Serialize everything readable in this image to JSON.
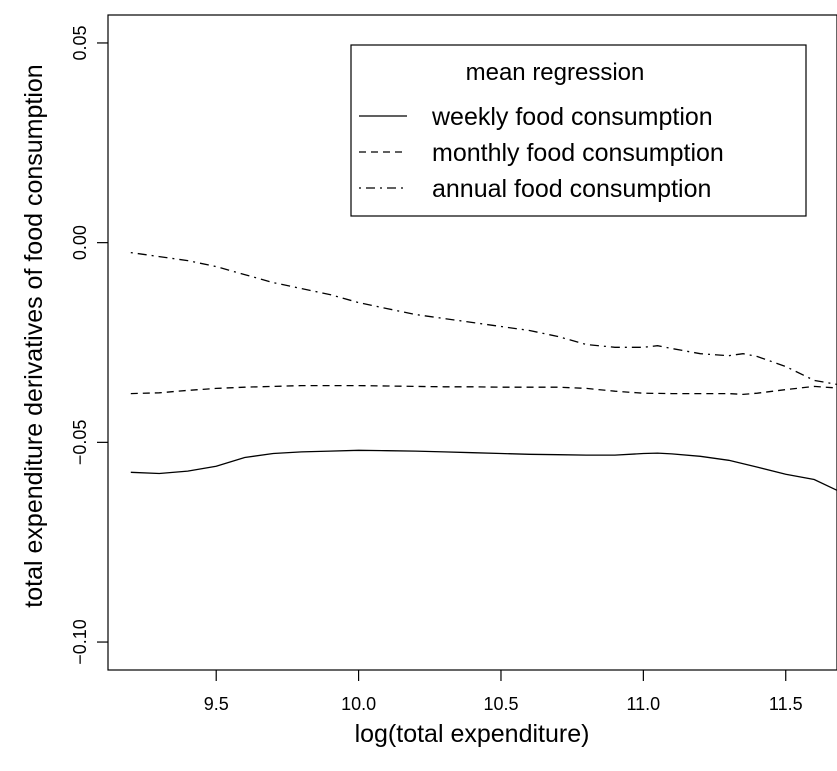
{
  "chart_data": {
    "type": "line",
    "xlabel": "log(total expenditure)",
    "ylabel": "total expenditure derivatives of food consumption",
    "xlim": [
      9.12,
      11.68
    ],
    "ylim": [
      -0.107,
      0.057
    ],
    "x_ticks": [
      {
        "value": 9.5,
        "label": "9.5"
      },
      {
        "value": 10.0,
        "label": "10.0"
      },
      {
        "value": 10.5,
        "label": "10.5"
      },
      {
        "value": 11.0,
        "label": "11.0"
      },
      {
        "value": 11.5,
        "label": "11.5"
      }
    ],
    "y_ticks": [
      {
        "value": -0.1,
        "label": "−0.10"
      },
      {
        "value": -0.05,
        "label": "−0.05"
      },
      {
        "value": 0.0,
        "label": "0.00"
      },
      {
        "value": 0.05,
        "label": "0.05"
      }
    ],
    "grid": false,
    "legend": {
      "title": "mean regression",
      "placement": "top-right",
      "entries": [
        "weekly food consumption",
        "monthly food consumption",
        "annual food consumption"
      ]
    },
    "series": [
      {
        "name": "weekly food consumption",
        "line_style": "solid",
        "x": [
          9.2,
          9.3,
          9.4,
          9.5,
          9.6,
          9.7,
          9.8,
          9.9,
          10.0,
          10.1,
          10.2,
          10.3,
          10.4,
          10.5,
          10.6,
          10.7,
          10.8,
          10.9,
          11.0,
          11.05,
          11.1,
          11.2,
          11.3,
          11.4,
          11.5,
          11.6,
          11.68
        ],
        "y": [
          -0.0575,
          -0.0578,
          -0.0572,
          -0.056,
          -0.0538,
          -0.0528,
          -0.0524,
          -0.0522,
          -0.052,
          -0.0521,
          -0.0522,
          -0.0524,
          -0.0526,
          -0.0528,
          -0.053,
          -0.0531,
          -0.0532,
          -0.0532,
          -0.0528,
          -0.0527,
          -0.0529,
          -0.0535,
          -0.0545,
          -0.0562,
          -0.058,
          -0.0593,
          -0.062
        ]
      },
      {
        "name": "monthly food consumption",
        "line_style": "dashed",
        "x": [
          9.2,
          9.3,
          9.4,
          9.5,
          9.6,
          9.7,
          9.8,
          9.9,
          10.0,
          10.1,
          10.2,
          10.3,
          10.4,
          10.5,
          10.6,
          10.7,
          10.8,
          10.9,
          11.0,
          11.1,
          11.2,
          11.3,
          11.35,
          11.4,
          11.5,
          11.6,
          11.68
        ],
        "y": [
          -0.0378,
          -0.0376,
          -0.037,
          -0.0365,
          -0.0362,
          -0.036,
          -0.0358,
          -0.0358,
          -0.0358,
          -0.0359,
          -0.036,
          -0.0361,
          -0.0361,
          -0.0362,
          -0.0362,
          -0.0362,
          -0.0365,
          -0.0372,
          -0.0377,
          -0.0378,
          -0.0378,
          -0.0378,
          -0.038,
          -0.0377,
          -0.0368,
          -0.036,
          -0.0364
        ]
      },
      {
        "name": "annual food consumption",
        "line_style": "dotdash",
        "x": [
          9.2,
          9.3,
          9.4,
          9.5,
          9.6,
          9.7,
          9.8,
          9.9,
          10.0,
          10.1,
          10.2,
          10.3,
          10.4,
          10.5,
          10.6,
          10.7,
          10.8,
          10.9,
          11.0,
          11.05,
          11.1,
          11.2,
          11.3,
          11.35,
          11.4,
          11.5,
          11.6,
          11.68
        ],
        "y": [
          -0.0025,
          -0.0035,
          -0.0045,
          -0.006,
          -0.008,
          -0.01,
          -0.0115,
          -0.013,
          -0.015,
          -0.0165,
          -0.018,
          -0.019,
          -0.02,
          -0.021,
          -0.022,
          -0.0235,
          -0.0255,
          -0.0262,
          -0.0262,
          -0.0258,
          -0.0265,
          -0.0278,
          -0.0283,
          -0.0278,
          -0.0285,
          -0.031,
          -0.0345,
          -0.0355
        ]
      }
    ]
  }
}
